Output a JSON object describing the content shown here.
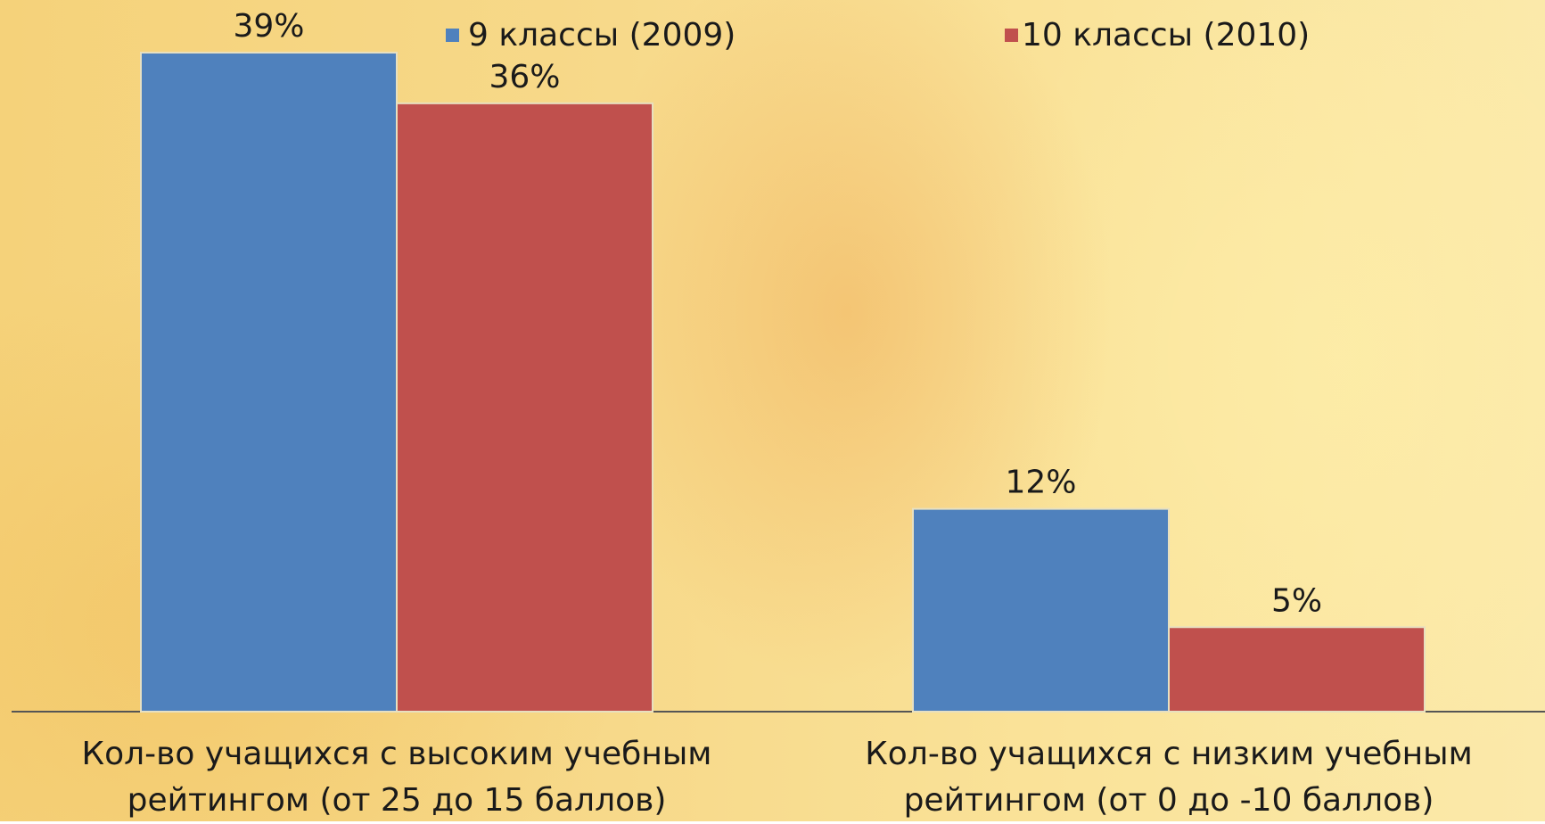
{
  "chart_data": {
    "type": "bar",
    "categories": [
      "Кол-во учащихся с высоким учебным рейтингом (от 25 до 15 баллов)",
      "Кол-во учащихся с низким учебным рейтингом (от 0 до -10 баллов)"
    ],
    "series": [
      {
        "name": "9 классы (2009)",
        "color": "#4f81bd",
        "values": [
          39,
          12
        ],
        "value_labels": [
          "39%",
          "12%"
        ]
      },
      {
        "name": "10 классы (2010)",
        "color": "#c0504d",
        "values": [
          36,
          5
        ],
        "value_labels": [
          "36%",
          "5%"
        ]
      }
    ]
  }
}
